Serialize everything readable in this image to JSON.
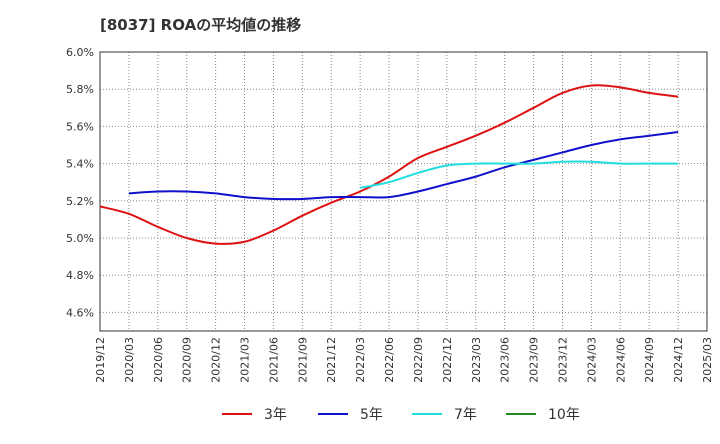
{
  "chart_data": {
    "type": "line",
    "title": "[8037]  ROAの平均値の推移",
    "xlabel": "",
    "ylabel": "",
    "ylim": [
      4.5,
      6.0
    ],
    "y_ticks": [
      "4.6%",
      "4.8%",
      "5.0%",
      "5.2%",
      "5.4%",
      "5.6%",
      "5.8%",
      "6.0%"
    ],
    "y_tick_values": [
      4.6,
      4.8,
      5.0,
      5.2,
      5.4,
      5.6,
      5.8,
      6.0
    ],
    "x_ticks": [
      "2019/12",
      "2020/03",
      "2020/06",
      "2020/09",
      "2020/12",
      "2021/03",
      "2021/06",
      "2021/09",
      "2021/12",
      "2022/03",
      "2022/06",
      "2022/09",
      "2022/12",
      "2023/03",
      "2023/06",
      "2023/09",
      "2023/12",
      "2024/03",
      "2024/06",
      "2024/09",
      "2024/12",
      "2025/03"
    ],
    "grid": true,
    "legend_position": "bottom",
    "series": [
      {
        "name": "3年",
        "color": "#dd1111",
        "x": [
          "2019/12",
          "2020/03",
          "2020/06",
          "2020/09",
          "2020/12",
          "2021/03",
          "2021/06",
          "2021/09",
          "2021/12",
          "2022/03",
          "2022/06",
          "2022/09",
          "2022/12",
          "2023/03",
          "2023/06",
          "2023/09",
          "2023/12",
          "2024/03",
          "2024/06",
          "2024/09",
          "2024/12"
        ],
        "values": [
          5.17,
          5.13,
          5.06,
          5.0,
          4.97,
          4.98,
          5.04,
          5.12,
          5.19,
          5.25,
          5.33,
          5.43,
          5.49,
          5.55,
          5.62,
          5.7,
          5.78,
          5.82,
          5.81,
          5.78,
          5.76
        ]
      },
      {
        "name": "5年",
        "color": "#1111cc",
        "x": [
          "2020/03",
          "2020/06",
          "2020/09",
          "2020/12",
          "2021/03",
          "2021/06",
          "2021/09",
          "2021/12",
          "2022/03",
          "2022/06",
          "2022/09",
          "2022/12",
          "2023/03",
          "2023/06",
          "2023/09",
          "2023/12",
          "2024/03",
          "2024/06",
          "2024/09",
          "2024/12"
        ],
        "values": [
          5.24,
          5.25,
          5.25,
          5.24,
          5.22,
          5.21,
          5.21,
          5.22,
          5.22,
          5.22,
          5.25,
          5.29,
          5.33,
          5.38,
          5.42,
          5.46,
          5.5,
          5.53,
          5.55,
          5.57
        ]
      },
      {
        "name": "7年",
        "color": "#22dddd",
        "x": [
          "2022/03",
          "2022/06",
          "2022/09",
          "2022/12",
          "2023/03",
          "2023/06",
          "2023/09",
          "2023/12",
          "2024/03",
          "2024/06",
          "2024/09",
          "2024/12"
        ],
        "values": [
          5.27,
          5.3,
          5.35,
          5.39,
          5.4,
          5.4,
          5.4,
          5.41,
          5.41,
          5.4,
          5.4,
          5.4
        ]
      },
      {
        "name": "10年",
        "color": "#228822",
        "x": [],
        "values": []
      }
    ]
  }
}
